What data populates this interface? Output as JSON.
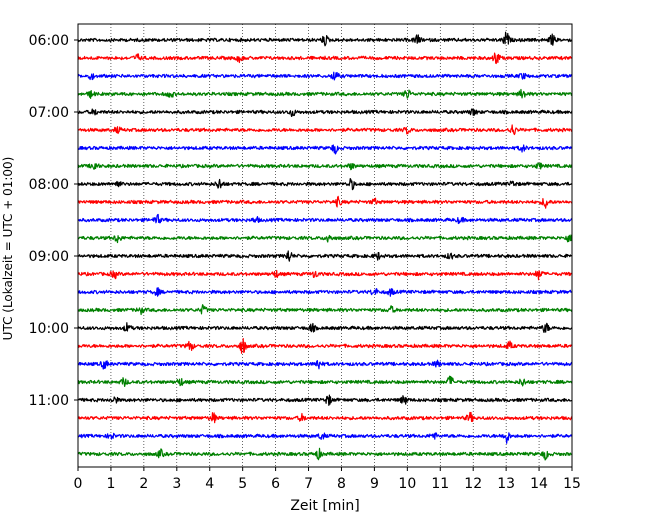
{
  "chart_data": {
    "type": "line",
    "title": "",
    "xlabel": "Zeit  [min]",
    "ylabel": "UTC (Lokalzeit = UTC + 01:00)",
    "xlim": [
      0,
      15
    ],
    "x_ticks": [
      0,
      1,
      2,
      3,
      4,
      5,
      6,
      7,
      8,
      9,
      10,
      11,
      12,
      13,
      14,
      15
    ],
    "x_tick_labels": [
      "0",
      "1",
      "2",
      "3",
      "4",
      "5",
      "6",
      "7",
      "8",
      "9",
      "10",
      "11",
      "12",
      "13",
      "14",
      "15"
    ],
    "y_ticks": [
      "06:00",
      "07:00",
      "08:00",
      "09:00",
      "10:00",
      "11:00"
    ],
    "grid": "vertical dotted at each minute",
    "trace_interval_min": 15,
    "start_time": "06:00",
    "trace_colors": [
      "#000000",
      "#ff0000",
      "#0000ff",
      "#008000"
    ],
    "traces": [
      {
        "start": "06:00",
        "color": "#000000",
        "events": [
          [
            7.5,
            0.9
          ],
          [
            10.3,
            0.9
          ],
          [
            13.0,
            1.4
          ],
          [
            14.4,
            0.9
          ]
        ]
      },
      {
        "start": "06:15",
        "color": "#ff0000",
        "events": [
          [
            1.8,
            0.6
          ],
          [
            4.9,
            0.6
          ],
          [
            12.7,
            1.2
          ]
        ]
      },
      {
        "start": "06:30",
        "color": "#0000ff",
        "events": [
          [
            0.4,
            0.5
          ],
          [
            7.8,
            0.9
          ],
          [
            13.5,
            0.5
          ]
        ]
      },
      {
        "start": "06:45",
        "color": "#008000",
        "events": [
          [
            0.4,
            0.6
          ],
          [
            2.8,
            0.6
          ],
          [
            10.0,
            0.9
          ],
          [
            13.5,
            0.9
          ]
        ]
      },
      {
        "start": "07:00",
        "color": "#000000",
        "events": [
          [
            0.5,
            0.5
          ],
          [
            6.5,
            0.7
          ],
          [
            12.0,
            0.6
          ]
        ]
      },
      {
        "start": "07:15",
        "color": "#ff0000",
        "events": [
          [
            1.2,
            0.5
          ],
          [
            10.0,
            0.6
          ],
          [
            13.2,
            1.0
          ]
        ]
      },
      {
        "start": "07:30",
        "color": "#0000ff",
        "events": [
          [
            7.8,
            0.9
          ],
          [
            13.5,
            0.6
          ]
        ]
      },
      {
        "start": "07:45",
        "color": "#008000",
        "events": [
          [
            0.5,
            0.9
          ],
          [
            8.3,
            0.5
          ],
          [
            14.0,
            0.5
          ]
        ]
      },
      {
        "start": "08:00",
        "color": "#000000",
        "events": [
          [
            1.2,
            0.6
          ],
          [
            4.3,
            1.0
          ],
          [
            8.3,
            1.0
          ],
          [
            13.2,
            0.5
          ]
        ]
      },
      {
        "start": "08:15",
        "color": "#ff0000",
        "events": [
          [
            7.9,
            0.8
          ],
          [
            9.0,
            0.5
          ],
          [
            14.2,
            1.1
          ]
        ]
      },
      {
        "start": "08:30",
        "color": "#0000ff",
        "events": [
          [
            2.4,
            0.9
          ],
          [
            5.4,
            0.5
          ],
          [
            11.6,
            0.5
          ]
        ]
      },
      {
        "start": "08:45",
        "color": "#008000",
        "events": [
          [
            1.2,
            0.8
          ],
          [
            7.6,
            0.8
          ],
          [
            14.9,
            0.6
          ]
        ]
      },
      {
        "start": "09:00",
        "color": "#000000",
        "events": [
          [
            6.4,
            1.1
          ],
          [
            9.1,
            0.6
          ],
          [
            11.3,
            0.5
          ]
        ]
      },
      {
        "start": "09:15",
        "color": "#ff0000",
        "events": [
          [
            1.1,
            0.7
          ],
          [
            6.0,
            0.6
          ],
          [
            7.2,
            0.6
          ],
          [
            14.0,
            1.0
          ]
        ]
      },
      {
        "start": "09:30",
        "color": "#0000ff",
        "events": [
          [
            2.4,
            0.6
          ],
          [
            9.0,
            0.7
          ],
          [
            9.5,
            0.6
          ]
        ]
      },
      {
        "start": "09:45",
        "color": "#008000",
        "events": [
          [
            1.9,
            0.6
          ],
          [
            3.8,
            0.8
          ],
          [
            9.5,
            0.6
          ]
        ]
      },
      {
        "start": "10:00",
        "color": "#000000",
        "events": [
          [
            1.5,
            0.8
          ],
          [
            7.1,
            0.7
          ],
          [
            14.2,
            0.9
          ]
        ]
      },
      {
        "start": "10:15",
        "color": "#ff0000",
        "events": [
          [
            3.4,
            0.9
          ],
          [
            5.0,
            1.5
          ],
          [
            13.1,
            0.7
          ]
        ]
      },
      {
        "start": "10:30",
        "color": "#0000ff",
        "events": [
          [
            0.8,
            0.8
          ],
          [
            7.3,
            1.0
          ],
          [
            10.9,
            0.5
          ]
        ]
      },
      {
        "start": "10:45",
        "color": "#008000",
        "events": [
          [
            1.4,
            0.7
          ],
          [
            3.1,
            0.7
          ],
          [
            11.3,
            1.0
          ],
          [
            13.5,
            0.7
          ]
        ]
      },
      {
        "start": "11:00",
        "color": "#000000",
        "events": [
          [
            1.1,
            0.6
          ],
          [
            7.6,
            0.9
          ],
          [
            9.9,
            0.8
          ]
        ]
      },
      {
        "start": "11:15",
        "color": "#ff0000",
        "events": [
          [
            4.1,
            0.9
          ],
          [
            6.8,
            0.6
          ],
          [
            11.9,
            0.9
          ]
        ]
      },
      {
        "start": "11:30",
        "color": "#0000ff",
        "events": [
          [
            1.0,
            0.6
          ],
          [
            7.4,
            0.6
          ],
          [
            10.8,
            0.6
          ],
          [
            13.0,
            1.3
          ]
        ]
      },
      {
        "start": "11:45",
        "color": "#008000",
        "events": [
          [
            2.5,
            0.7
          ],
          [
            7.3,
            0.9
          ],
          [
            14.2,
            0.9
          ]
        ]
      }
    ]
  }
}
